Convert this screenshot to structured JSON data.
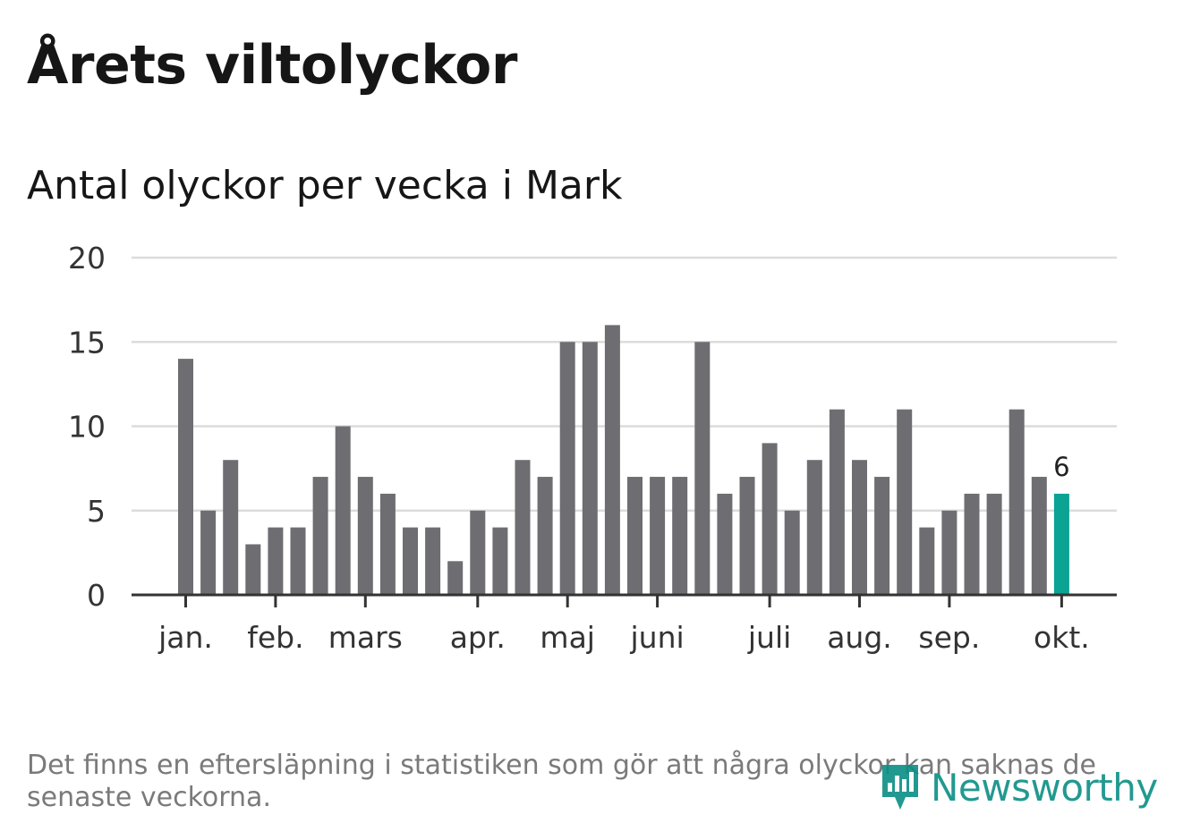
{
  "header": {
    "title": "Årets viltolyckor",
    "subtitle": "Antal olyckor per vecka i Mark"
  },
  "footer": {
    "note": "Det finns en eftersläpning i statistiken som gör att några olyckor kan saknas de senaste veckorna.",
    "brand": "Newsworthy",
    "brand_icon": "newsworthy-logo-icon",
    "brand_color": "#0b8f84"
  },
  "chart_data": {
    "type": "bar",
    "title": "Årets viltolyckor",
    "subtitle": "Antal olyckor per vecka i Mark",
    "xlabel": "",
    "ylabel": "",
    "ylim": [
      0,
      20
    ],
    "yticks": [
      "0",
      "5",
      "10",
      "15",
      "20"
    ],
    "grid": true,
    "month_labels": [
      {
        "label": "jan.",
        "week_index": 0
      },
      {
        "label": "feb.",
        "week_index": 4
      },
      {
        "label": "mars",
        "week_index": 8
      },
      {
        "label": "apr.",
        "week_index": 13
      },
      {
        "label": "maj",
        "week_index": 17
      },
      {
        "label": "juni",
        "week_index": 21
      },
      {
        "label": "juli",
        "week_index": 26
      },
      {
        "label": "aug.",
        "week_index": 30
      },
      {
        "label": "sep.",
        "week_index": 34
      },
      {
        "label": "okt.",
        "week_index": 39
      }
    ],
    "values": [
      14,
      5,
      8,
      3,
      4,
      4,
      7,
      10,
      7,
      6,
      4,
      4,
      2,
      5,
      4,
      8,
      7,
      15,
      15,
      16,
      7,
      7,
      7,
      15,
      6,
      7,
      9,
      5,
      8,
      11,
      8,
      7,
      11,
      4,
      5,
      6,
      6,
      11,
      7,
      6
    ],
    "highlight_index": 39,
    "highlight_label": "6",
    "bar_color": "#6e6d72",
    "highlight_color": "#0aa394",
    "grid_color": "#dcdcdc",
    "axis_color": "#333333"
  }
}
